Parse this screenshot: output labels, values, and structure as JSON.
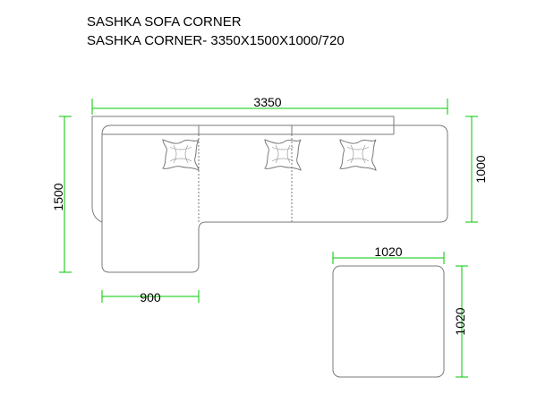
{
  "title": {
    "line1": "SASHKA SOFA CORNER",
    "line2": "SASHKA CORNER- 3350X1500X1000/720"
  },
  "dimensions": {
    "overall_width": "3350",
    "overall_depth": "1500",
    "right_depth": "1000",
    "chaise_width": "900",
    "ottoman_width": "1020",
    "ottoman_depth": "1020"
  },
  "colors": {
    "outline": "#7a7a7a",
    "dimension_line": "#00c800",
    "text": "#000000"
  },
  "icons": [
    "cushion-icon",
    "cushion-icon",
    "cushion-icon"
  ]
}
